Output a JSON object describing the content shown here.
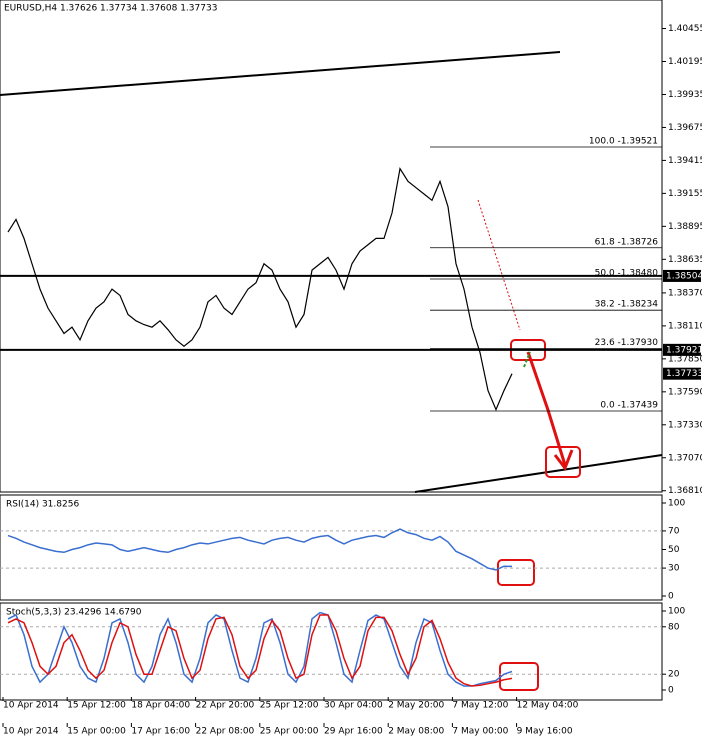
{
  "chart_data": [
    {
      "type": "line",
      "title": "EURUSD,H4  1.37626 1.37734 1.37608 1.37733",
      "color": "#000000",
      "values": [
        1.3885,
        1.3895,
        1.388,
        1.386,
        1.384,
        1.3825,
        1.3815,
        1.3805,
        1.381,
        1.38,
        1.3815,
        1.3825,
        1.383,
        1.384,
        1.3835,
        1.382,
        1.3815,
        1.3812,
        1.381,
        1.3815,
        1.3808,
        1.38,
        1.3795,
        1.38,
        1.381,
        1.383,
        1.3835,
        1.3825,
        1.382,
        1.383,
        1.384,
        1.3845,
        1.386,
        1.3855,
        1.384,
        1.383,
        1.381,
        1.382,
        1.3855,
        1.386,
        1.3865,
        1.3855,
        1.384,
        1.386,
        1.387,
        1.3875,
        1.388,
        1.388,
        1.39,
        1.3935,
        1.3925,
        1.392,
        1.3915,
        1.391,
        1.3925,
        1.3905,
        1.386,
        1.384,
        1.381,
        1.379,
        1.376,
        1.3745,
        1.376,
        1.37733
      ],
      "ylim": [
        1.368,
        1.4068
      ],
      "yticks": [
        1.40455,
        1.40195,
        1.39935,
        1.39675,
        1.39415,
        1.39155,
        1.38895,
        1.38635,
        {
          "value": 1.3837,
          "label": "1.38370"
        },
        {
          "value": 1.3811,
          "label": "1.38110"
        },
        {
          "value": 1.3785,
          "label": "1.37850"
        },
        {
          "value": 1.3759,
          "label": "1.37590"
        },
        {
          "value": 1.3733,
          "label": "1.37330"
        },
        {
          "value": 1.3707,
          "label": "1.37070"
        },
        {
          "value": 1.3681,
          "label": "1.36810"
        }
      ],
      "price_labels": [
        1.38504,
        1.37921,
        1.37733
      ],
      "fibo": [
        {
          "value": 1.39521,
          "label": "100.0 -1.39521"
        },
        {
          "value": 1.38726,
          "label": "61.8 -1.38726"
        },
        {
          "value": 1.3848,
          "label": "50.0 -1.38480"
        },
        {
          "value": 1.38234,
          "label": "38.2 -1.38234"
        },
        {
          "value": 1.3793,
          "label": "23.6 -1.37930"
        },
        {
          "value": 1.37439,
          "label": "0.0 -1.37439"
        }
      ]
    },
    {
      "type": "line",
      "title": "RSI(14) 31.8256",
      "color": "#3a6fd0",
      "values": [
        65,
        62,
        58,
        55,
        52,
        50,
        48,
        47,
        50,
        52,
        55,
        57,
        56,
        55,
        50,
        48,
        50,
        52,
        50,
        48,
        47,
        50,
        52,
        55,
        57,
        56,
        58,
        60,
        62,
        63,
        60,
        58,
        56,
        60,
        62,
        63,
        60,
        58,
        62,
        64,
        65,
        60,
        56,
        60,
        62,
        64,
        65,
        63,
        68,
        72,
        68,
        66,
        62,
        60,
        64,
        58,
        48,
        44,
        40,
        35,
        30,
        28,
        32,
        31.8256
      ],
      "ylim": [
        0,
        100
      ],
      "yticks": [
        100,
        70,
        50,
        30,
        0
      ],
      "levels": [
        70,
        30
      ]
    },
    {
      "type": "line",
      "title": "Stoch(5,3,3) 23.4296 14.6790",
      "series": [
        {
          "color": "#3a6fd0",
          "values": [
            90,
            95,
            70,
            30,
            10,
            20,
            50,
            80,
            60,
            30,
            15,
            10,
            40,
            85,
            90,
            60,
            20,
            10,
            30,
            70,
            90,
            60,
            20,
            10,
            40,
            85,
            95,
            90,
            50,
            15,
            10,
            40,
            85,
            90,
            60,
            20,
            10,
            30,
            90,
            98,
            95,
            60,
            20,
            10,
            50,
            88,
            95,
            90,
            60,
            30,
            15,
            60,
            90,
            85,
            50,
            20,
            10,
            5,
            5,
            8,
            10,
            12,
            20,
            23.4296
          ]
        },
        {
          "color": "#e01010",
          "values": [
            85,
            90,
            85,
            60,
            30,
            20,
            30,
            60,
            70,
            50,
            25,
            15,
            25,
            60,
            85,
            80,
            45,
            20,
            20,
            50,
            80,
            75,
            40,
            15,
            25,
            65,
            90,
            92,
            70,
            30,
            15,
            25,
            65,
            88,
            75,
            40,
            15,
            20,
            70,
            95,
            95,
            75,
            40,
            15,
            30,
            75,
            92,
            92,
            75,
            45,
            20,
            40,
            80,
            88,
            65,
            35,
            15,
            8,
            5,
            6,
            8,
            10,
            13,
            14.679
          ]
        }
      ],
      "ylim": [
        0,
        100
      ],
      "yticks": [
        100,
        80,
        20,
        0
      ],
      "levels": [
        80,
        20
      ]
    }
  ],
  "time_axis": {
    "rows": [
      [
        "10 Apr 2014",
        "15 Apr 12:00",
        "18 Apr 04:00",
        "22 Apr 20:00",
        "25 Apr 12:00",
        "30 Apr 04:00",
        "2 May 20:00",
        "7 May 12:00",
        "12 May 04:00"
      ],
      [
        "10 Apr 2014",
        "15 Apr 00:00",
        "17 Apr 16:00",
        "22 Apr 08:00",
        "25 Apr 00:00",
        "29 Apr 16:00",
        "2 May 08:00",
        "7 May 00:00",
        "9 May 16:00"
      ]
    ]
  }
}
